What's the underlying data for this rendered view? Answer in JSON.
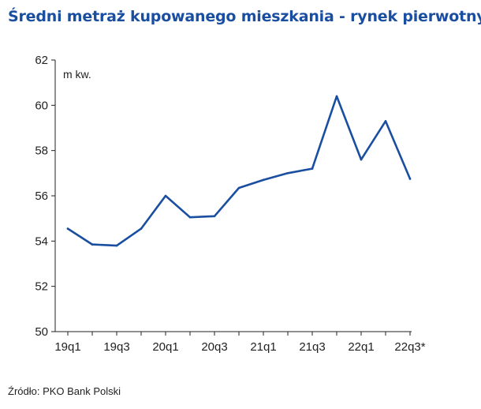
{
  "title": "Średni metraż kupowanego mieszkania - rynek pierwotny",
  "source": "Źródło: PKO Bank Polski",
  "colors": {
    "line": "#1a4ea0",
    "title": "#1a4ea0",
    "axis": "#222222"
  },
  "chart_data": {
    "type": "line",
    "title": "Średni metraż kupowanego mieszkania - rynek pierwotny",
    "ylabel": "m kw.",
    "xlabel": "",
    "ylim": [
      50,
      62
    ],
    "yticks": [
      50,
      52,
      54,
      56,
      58,
      60,
      62
    ],
    "grid": false,
    "x": [
      "19q1",
      "19q2",
      "19q3",
      "19q4",
      "20q1",
      "20q2",
      "20q3",
      "20q4",
      "21q1",
      "21q2",
      "21q3",
      "21q4",
      "22q1",
      "22q2",
      "22q3*"
    ],
    "xtick_labels": [
      "19q1",
      "19q3",
      "20q1",
      "20q3",
      "21q1",
      "21q3",
      "22q1",
      "22q3*"
    ],
    "series": [
      {
        "values": [
          54.55,
          53.85,
          53.8,
          54.55,
          56.0,
          55.05,
          55.1,
          56.35,
          56.7,
          57.0,
          57.2,
          60.4,
          57.6,
          59.3,
          56.75
        ]
      }
    ]
  }
}
